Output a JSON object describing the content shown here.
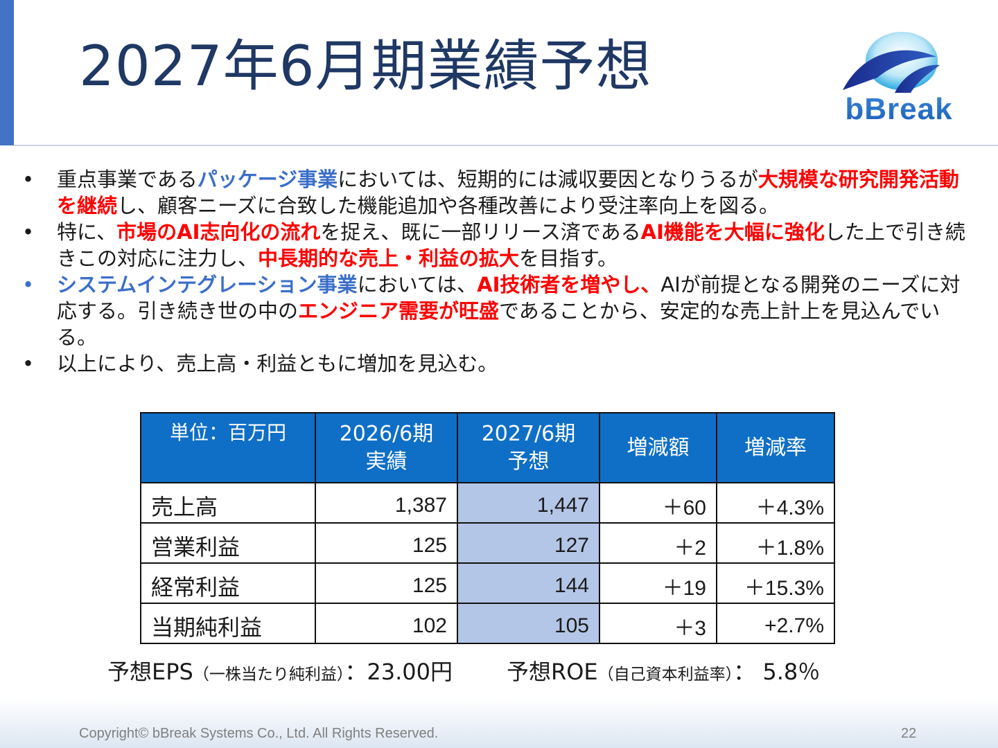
{
  "slide": {
    "title": "2027年6月期業績予想",
    "logo_text": "bBreak",
    "colors": {
      "title": "#1f3864",
      "accent_bar": "#4472c4",
      "highlight_blue": "#3b6fc8",
      "highlight_red": "#ff0000",
      "table_header": "#0f6fc6",
      "forecast_cell": "#b4c6e7"
    }
  },
  "bullets": [
    {
      "marker": "•",
      "segments": [
        {
          "text": "重点事業である",
          "style": "plain"
        },
        {
          "text": "パッケージ事業",
          "style": "blue"
        },
        {
          "text": "においては、短期的には減収要因となりうるが",
          "style": "plain"
        },
        {
          "text": "大規模な研究開発活動を継続",
          "style": "red"
        },
        {
          "text": "し、顧客ニーズに合致した機能追加や各種改善により受注率向上を図る。",
          "style": "plain"
        }
      ]
    },
    {
      "marker": "•",
      "segments": [
        {
          "text": "特に、",
          "style": "plain"
        },
        {
          "text": "市場のAI志向化の流れ",
          "style": "red"
        },
        {
          "text": "を捉え、既に一部リリース済である",
          "style": "plain"
        },
        {
          "text": "AI機能を大幅に強化",
          "style": "red"
        },
        {
          "text": "した上で引き続きこの対応に注力し、",
          "style": "plain"
        },
        {
          "text": "中長期的な売上・利益の拡大",
          "style": "red"
        },
        {
          "text": "を目指す。",
          "style": "plain"
        }
      ]
    },
    {
      "marker": "•",
      "segments": [
        {
          "text": "システムインテグレーション事業",
          "style": "blue"
        },
        {
          "text": "においては、",
          "style": "plain"
        },
        {
          "text": "AI技術者を増やし、",
          "style": "red"
        },
        {
          "text": "AIが前提となる開発のニーズに対応する。引き続き世の中の",
          "style": "plain"
        },
        {
          "text": "エンジニア需要が旺盛",
          "style": "red"
        },
        {
          "text": "であることから、安定的な売上計上を見込んでいる。",
          "style": "plain"
        }
      ]
    },
    {
      "marker": "•",
      "segments": [
        {
          "text": "以上により、売上高・利益ともに増加を見込む。",
          "style": "plain"
        }
      ]
    }
  ],
  "table": {
    "headers": [
      "単位：百万円",
      "2026/6期\n実績",
      "2027/6期\n予想",
      "増減額",
      "増減率"
    ],
    "rows": [
      {
        "label": "売上高",
        "actual": "1,387",
        "forecast": "1,447",
        "diff": "＋60",
        "rate": "＋4.3%"
      },
      {
        "label": "営業利益",
        "actual": "125",
        "forecast": "127",
        "diff": "＋2",
        "rate": "＋1.8%"
      },
      {
        "label": "経常利益",
        "actual": "125",
        "forecast": "144",
        "diff": "＋19",
        "rate": "＋15.3%"
      },
      {
        "label": "当期純利益",
        "actual": "102",
        "forecast": "105",
        "diff": "＋3",
        "rate": "+2.7%"
      }
    ]
  },
  "metrics": {
    "eps_label": "予想EPS",
    "eps_note": "（一株当たり純利益）",
    "eps_sep": "：",
    "eps_value": "23.00円",
    "roe_label": "予想ROE",
    "roe_note": "（自己資本利益率）",
    "roe_sep": "：",
    "roe_value": "5.8％"
  },
  "footer": {
    "copyright": "Copyright© bBreak Systems Co., Ltd. All Rights Reserved.",
    "page_number": "22"
  }
}
